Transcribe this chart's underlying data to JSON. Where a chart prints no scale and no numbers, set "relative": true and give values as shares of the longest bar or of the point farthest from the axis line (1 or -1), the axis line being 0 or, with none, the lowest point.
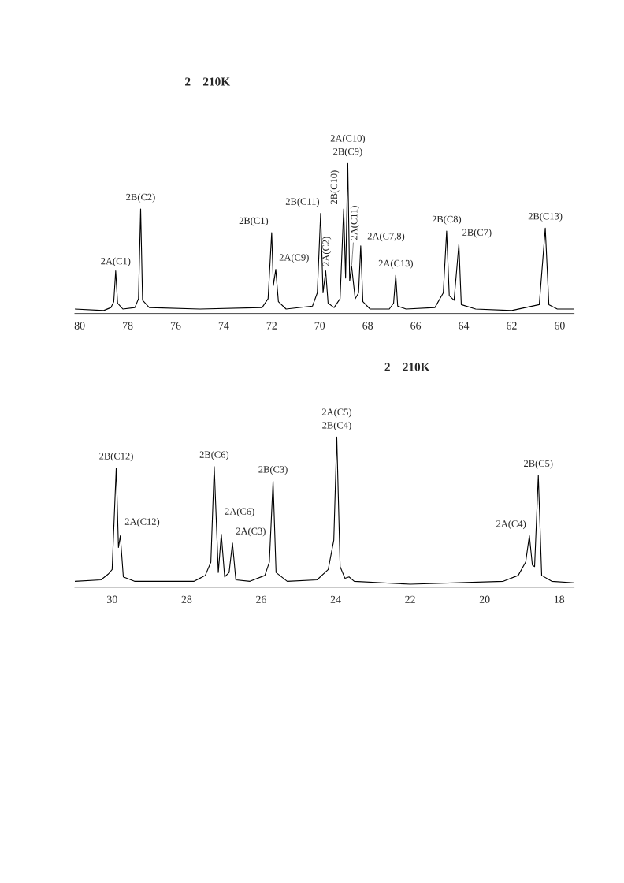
{
  "chart_data": [
    {
      "type": "line",
      "title": "2    210K",
      "relative": true,
      "tick_labels": "x",
      "color": "#000000",
      "x": [
        80.2,
        79.0,
        78.7,
        78.58,
        78.5,
        78.42,
        78.2,
        77.7,
        77.55,
        77.46,
        77.38,
        77.1,
        75.0,
        72.4,
        72.15,
        72.0,
        71.93,
        71.83,
        71.72,
        71.4,
        70.3,
        70.1,
        69.96,
        69.86,
        69.75,
        69.65,
        69.4,
        69.15,
        69.0,
        68.92,
        68.83,
        68.75,
        68.67,
        68.52,
        68.38,
        68.29,
        68.2,
        67.9,
        67.1,
        66.92,
        66.83,
        66.75,
        66.4,
        65.2,
        64.85,
        64.71,
        64.6,
        64.4,
        64.2,
        64.1,
        63.5,
        62.0,
        60.85,
        60.6,
        60.45,
        60.1,
        59.4
      ],
      "values": [
        0.01,
        0.0,
        0.02,
        0.06,
        0.27,
        0.05,
        0.01,
        0.02,
        0.08,
        0.69,
        0.07,
        0.02,
        0.01,
        0.02,
        0.08,
        0.53,
        0.17,
        0.28,
        0.06,
        0.01,
        0.03,
        0.12,
        0.66,
        0.12,
        0.27,
        0.05,
        0.02,
        0.08,
        0.69,
        0.22,
        1.0,
        0.2,
        0.3,
        0.08,
        0.12,
        0.44,
        0.06,
        0.01,
        0.01,
        0.05,
        0.24,
        0.03,
        0.01,
        0.02,
        0.12,
        0.54,
        0.1,
        0.07,
        0.45,
        0.04,
        0.01,
        0.0,
        0.04,
        0.56,
        0.04,
        0.01,
        0.01
      ],
      "xlim": [
        80.2,
        59.4
      ],
      "xticks": [
        80,
        78,
        76,
        74,
        72,
        70,
        68,
        66,
        64,
        62,
        60
      ],
      "annotations": [
        {
          "text": "2A(C1)",
          "x": 78.5,
          "y": 0.27
        },
        {
          "text": "2B(C2)",
          "x": 77.46,
          "y": 0.69
        },
        {
          "text": "2B(C1)",
          "x": 72.0,
          "y": 0.53
        },
        {
          "text": "2A(C9)",
          "x": 71.83,
          "y": 0.28
        },
        {
          "text": "2B(C11)",
          "x": 69.96,
          "y": 0.66
        },
        {
          "text": "2A(C2)",
          "x": 69.75,
          "y": 0.27
        },
        {
          "text": "2B(C10)",
          "x": 69.0,
          "y": 0.69
        },
        {
          "text": "2A(C10)",
          "x": 68.83,
          "y": 1.0
        },
        {
          "text": "2B(C9)",
          "x": 68.83,
          "y": 1.0
        },
        {
          "text": "2A(C11)",
          "x": 68.67,
          "y": 0.3
        },
        {
          "text": "2A(C7,8)",
          "x": 68.29,
          "y": 0.44
        },
        {
          "text": "2A(C13)",
          "x": 66.83,
          "y": 0.24
        },
        {
          "text": "2B(C8)",
          "x": 64.71,
          "y": 0.54
        },
        {
          "text": "2B(C7)",
          "x": 64.2,
          "y": 0.45
        },
        {
          "text": "2B(C13)",
          "x": 60.6,
          "y": 0.56
        }
      ]
    },
    {
      "type": "line",
      "title": "2    210K",
      "relative": true,
      "tick_labels": "x",
      "color": "#000000",
      "x": [
        31.0,
        30.3,
        30.1,
        30.0,
        29.89,
        29.83,
        29.78,
        29.7,
        29.4,
        27.8,
        27.5,
        27.35,
        27.26,
        27.15,
        27.07,
        26.98,
        26.86,
        26.77,
        26.68,
        26.3,
        25.9,
        25.78,
        25.68,
        25.6,
        25.3,
        24.5,
        24.2,
        24.05,
        23.97,
        23.88,
        23.75,
        23.64,
        23.5,
        22.0,
        19.5,
        19.1,
        18.9,
        18.8,
        18.72,
        18.66,
        18.56,
        18.47,
        18.2,
        17.6
      ],
      "values": [
        0.02,
        0.03,
        0.07,
        0.1,
        0.79,
        0.25,
        0.33,
        0.05,
        0.02,
        0.02,
        0.06,
        0.15,
        0.8,
        0.08,
        0.34,
        0.05,
        0.08,
        0.28,
        0.03,
        0.02,
        0.06,
        0.15,
        0.7,
        0.08,
        0.02,
        0.03,
        0.1,
        0.3,
        1.0,
        0.12,
        0.04,
        0.05,
        0.02,
        0.0,
        0.02,
        0.06,
        0.15,
        0.33,
        0.13,
        0.12,
        0.74,
        0.06,
        0.02,
        0.01
      ],
      "xlim": [
        31.0,
        17.6
      ],
      "xticks": [
        30,
        28,
        26,
        24,
        22,
        20,
        18
      ],
      "annotations": [
        {
          "text": "2B(C12)",
          "x": 29.89,
          "y": 0.79
        },
        {
          "text": "2A(C12)",
          "x": 29.78,
          "y": 0.33
        },
        {
          "text": "2B(C6)",
          "x": 27.26,
          "y": 0.8
        },
        {
          "text": "2A(C6)",
          "x": 27.07,
          "y": 0.34
        },
        {
          "text": "2A(C3)",
          "x": 26.77,
          "y": 0.28
        },
        {
          "text": "2B(C3)",
          "x": 25.68,
          "y": 0.7
        },
        {
          "text": "2A(C5)",
          "x": 23.97,
          "y": 1.0
        },
        {
          "text": "2B(C4)",
          "x": 23.97,
          "y": 1.0
        },
        {
          "text": "2A(C4)",
          "x": 18.8,
          "y": 0.33
        },
        {
          "text": "2B(C5)",
          "x": 18.56,
          "y": 0.74
        }
      ]
    }
  ]
}
